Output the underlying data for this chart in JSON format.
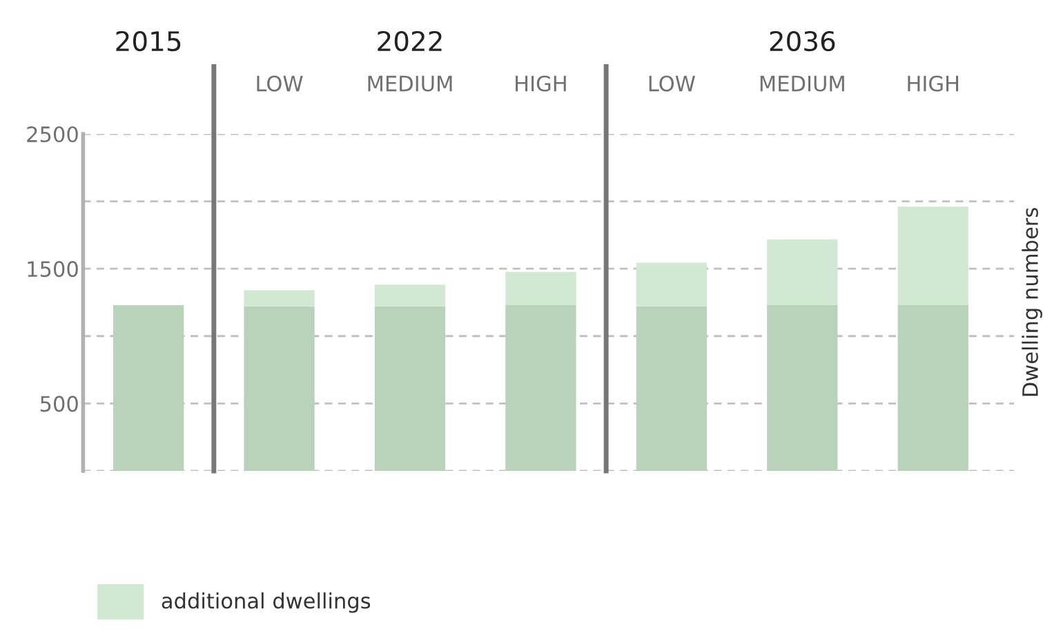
{
  "chart_data": {
    "type": "bar",
    "stacked": true,
    "ylabel": "Dwelling numbers",
    "categories": [
      null,
      "LOW",
      "MEDIUM",
      "HIGH",
      "LOW",
      "MEDIUM",
      "HIGH"
    ],
    "series": [
      {
        "color": "#b9d3ba",
        "values": [
          1230,
          1220,
          1220,
          1230,
          1220,
          1230,
          1230
        ]
      },
      {
        "name": "additional dwellings",
        "color": "#d1e8d2",
        "values": [
          null,
          121,
          162,
          247,
          325,
          487,
          731
        ]
      }
    ],
    "ylim": [
      0,
      2500
    ],
    "yticks": [
      {
        "value": 0,
        "label": null
      },
      500,
      {
        "value": 1000,
        "label": null
      },
      1500,
      {
        "value": 2000,
        "label": null
      },
      2500
    ],
    "grid": "y",
    "legend": "bottom left",
    "annotations": [
      "2015",
      "2022",
      "2036"
    ]
  }
}
